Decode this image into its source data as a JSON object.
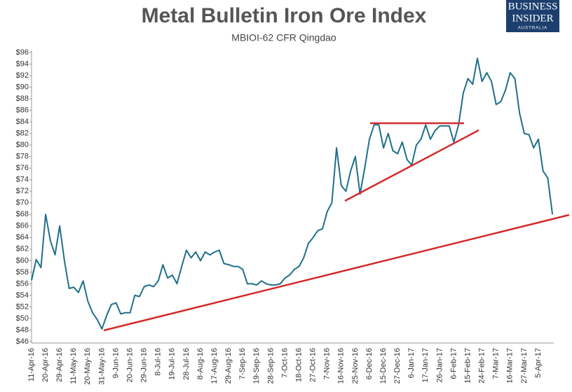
{
  "chart_data": {
    "type": "line",
    "title": "Metal Bulletin Iron Ore Index",
    "subtitle": "MBIOI-62 CFR Qingdao",
    "categories": [
      "11-Apr-16",
      null,
      null,
      "20-Apr-16",
      null,
      null,
      "29-Apr-16",
      null,
      null,
      "11-May-16",
      null,
      null,
      "20-May-16",
      null,
      null,
      "31-May-16",
      null,
      null,
      "9-Jun-16",
      null,
      null,
      "20-Jun-16",
      null,
      null,
      "29-Jun-16",
      null,
      null,
      "8-Jul-16",
      null,
      null,
      "19-Jul-16",
      null,
      null,
      "28-Jul-16",
      null,
      null,
      "8-Aug-16",
      null,
      null,
      "17-Aug-16",
      null,
      null,
      "29-Aug-16",
      null,
      null,
      "7-Sep-16",
      null,
      null,
      "19-Sep-16",
      null,
      null,
      "28-Sep-16",
      null,
      null,
      "7-Oct-16",
      null,
      null,
      "18-Oct-16",
      null,
      null,
      "27-Oct-16",
      null,
      null,
      "7-Nov-16",
      null,
      null,
      "16-Nov-16",
      null,
      null,
      "25-Nov-16",
      null,
      null,
      "6-Dec-16",
      null,
      null,
      "15-Dec-16",
      null,
      null,
      "27-Dec-16",
      null,
      null,
      "6-Jan-17",
      null,
      null,
      "17-Jan-17",
      null,
      null,
      "26-Jan-17",
      null,
      null,
      "6-Feb-17",
      null,
      null,
      "15-Feb-17",
      null,
      null,
      "24-Feb-17",
      null,
      null,
      "7-Mar-17",
      null,
      null,
      "16-Mar-17",
      null,
      null,
      "27-Mar-17",
      null,
      null,
      "5-Apr-17",
      null,
      null,
      null
    ],
    "values": [
      56.6,
      60.2,
      58.8,
      68,
      63.5,
      61,
      66,
      60,
      55.2,
      55.4,
      54.5,
      56.5,
      53,
      51,
      49.8,
      48.2,
      50.5,
      52.4,
      52.7,
      50.8,
      51,
      51,
      54,
      53.8,
      55.5,
      55.8,
      55.5,
      56.5,
      59.3,
      57,
      57.5,
      56,
      59,
      61.8,
      60.5,
      61.5,
      60,
      61.5,
      61,
      61.5,
      61.8,
      59.5,
      59.3,
      59,
      59,
      58.5,
      56,
      56,
      55.8,
      56.5,
      56,
      55.8,
      55.8,
      56,
      57,
      57.5,
      58.5,
      59,
      60.5,
      63,
      64,
      65.2,
      65.5,
      68.5,
      70,
      79.5,
      73,
      72,
      75.5,
      78,
      71.5,
      76,
      81,
      83.5,
      83.5,
      79.5,
      82,
      79,
      78.5,
      80.5,
      77.5,
      76.5,
      80,
      81,
      83.5,
      81,
      82.5,
      83.3,
      83.3,
      83.3,
      80.5,
      83.5,
      89,
      91.5,
      90.5,
      95,
      91,
      92.5,
      91,
      87,
      87.5,
      89.5,
      92.5,
      91.5,
      85.5,
      82,
      81.8,
      79.5,
      81,
      75.5,
      74.3,
      68
    ],
    "color": "#1f6f8b",
    "ylim": [
      46,
      96
    ],
    "yticks": [
      {
        "value": 46,
        "label": "$46"
      },
      {
        "value": 48,
        "label": "$48"
      },
      {
        "value": 50,
        "label": "$50"
      },
      {
        "value": 52,
        "label": "$52"
      },
      {
        "value": 54,
        "label": "$54"
      },
      {
        "value": 56,
        "label": "$56"
      },
      {
        "value": 58,
        "label": "$58"
      },
      {
        "value": 60,
        "label": "$60"
      },
      {
        "value": 62,
        "label": "$62"
      },
      {
        "value": 64,
        "label": "$64"
      },
      {
        "value": 66,
        "label": "$66"
      },
      {
        "value": 68,
        "label": "$68"
      },
      {
        "value": 70,
        "label": "$70"
      },
      {
        "value": 72,
        "label": "$72"
      },
      {
        "value": 74,
        "label": "$74"
      },
      {
        "value": 76,
        "label": "$76"
      },
      {
        "value": 78,
        "label": "$78"
      },
      {
        "value": 80,
        "label": "$80"
      },
      {
        "value": 82,
        "label": "$82"
      },
      {
        "value": 84,
        "label": "$84"
      },
      {
        "value": 86,
        "label": "$86"
      },
      {
        "value": 88,
        "label": "$88"
      },
      {
        "value": 90,
        "label": "$90"
      },
      {
        "value": 92,
        "label": "$92"
      },
      {
        "value": 94,
        "label": "$94"
      },
      {
        "value": 96,
        "label": "$96"
      }
    ],
    "grid": false
  },
  "logo": {
    "line1": "BUSINESS",
    "line2": "INSIDER",
    "line3": "AUSTRALIA"
  }
}
